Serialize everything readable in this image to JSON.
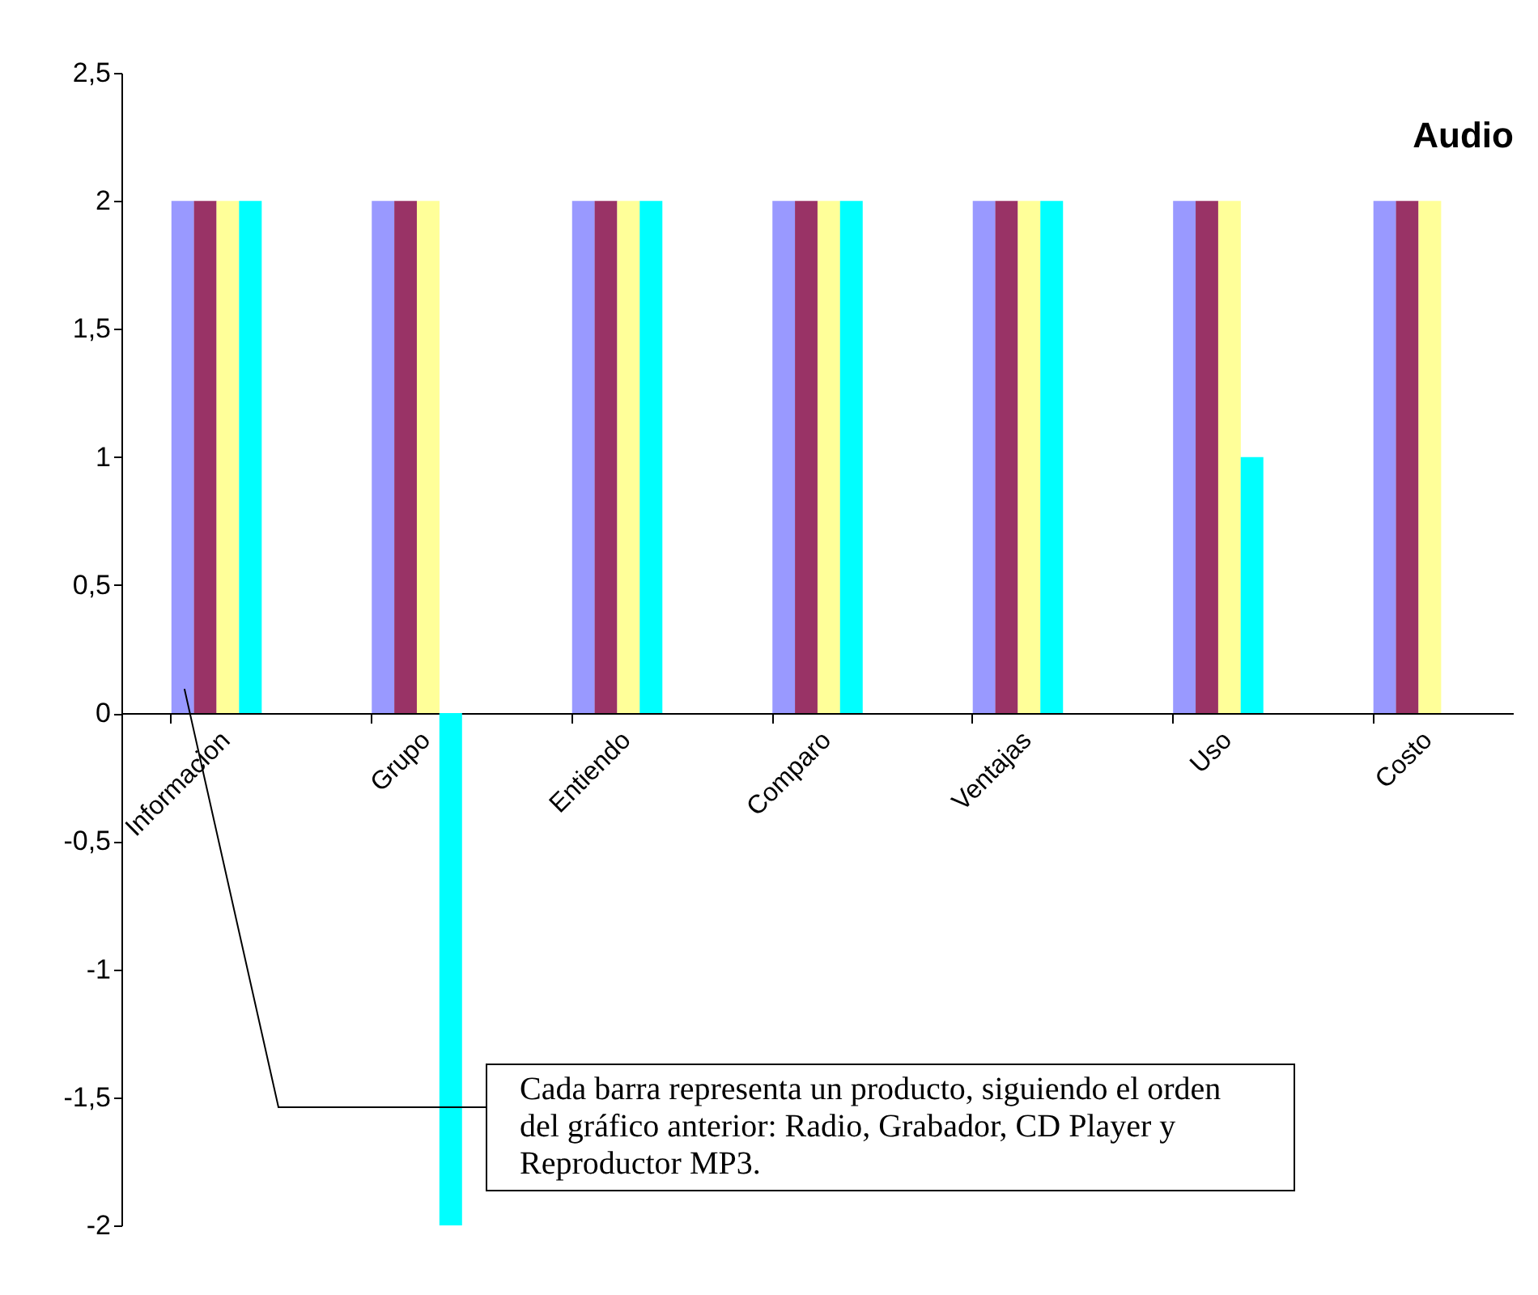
{
  "chart_data": {
    "type": "bar",
    "title": "Audio",
    "categories": [
      "Informacion",
      "Grupo",
      "Entiendo",
      "Comparo",
      "Ventajas",
      "Uso",
      "Costo"
    ],
    "series": [
      {
        "color": "#9999ff",
        "values": [
          2,
          2,
          2,
          2,
          2,
          2,
          2
        ]
      },
      {
        "color": "#993366",
        "values": [
          2,
          2,
          2,
          2,
          2,
          2,
          2
        ]
      },
      {
        "color": "#ffff99",
        "values": [
          2,
          2,
          2,
          2,
          2,
          2,
          2
        ]
      },
      {
        "color": "#00ffff",
        "values": [
          2,
          -2,
          2,
          2,
          2,
          1,
          0
        ]
      }
    ],
    "ylim": [
      -2,
      2.5
    ],
    "yticks": [
      -2,
      {
        "value": -1.5,
        "label": "-1,5"
      },
      -1,
      {
        "value": -0.5,
        "label": "-0,5"
      },
      0,
      {
        "value": 0.5,
        "label": "0,5"
      },
      1,
      {
        "value": 1.5,
        "label": "1,5"
      },
      2,
      {
        "value": 2.5,
        "label": "2,5"
      }
    ],
    "grid": false,
    "legend": false,
    "annotations": [
      "Cada barra representa un producto, siguiendo el orden del gráfico anterior: Radio, Grabador, CD Player y Reproductor MP3."
    ]
  }
}
